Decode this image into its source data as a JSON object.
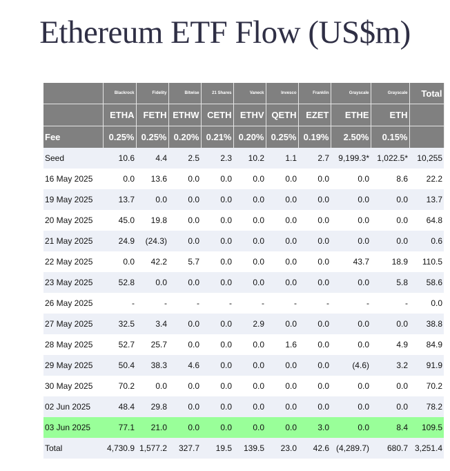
{
  "title": "Ethereum ETF Flow (US$m)",
  "columns": [
    {
      "issuer": "Blackrock",
      "ticker": "ETHA",
      "fee": "0.25%"
    },
    {
      "issuer": "Fidelity",
      "ticker": "FETH",
      "fee": "0.25%"
    },
    {
      "issuer": "Bitwise",
      "ticker": "ETHW",
      "fee": "0.20%"
    },
    {
      "issuer": "21 Shares",
      "ticker": "CETH",
      "fee": "0.21%"
    },
    {
      "issuer": "Vaneck",
      "ticker": "ETHV",
      "fee": "0.20%"
    },
    {
      "issuer": "Invesco",
      "ticker": "QETH",
      "fee": "0.25%"
    },
    {
      "issuer": "Franklin",
      "ticker": "EZET",
      "fee": "0.19%"
    },
    {
      "issuer": "Grayscale",
      "ticker": "ETHE",
      "fee": "2.50%"
    },
    {
      "issuer": "Grayscale",
      "ticker": "ETH",
      "fee": "0.15%"
    }
  ],
  "total_header": "Total",
  "fee_label": "Fee",
  "rows": [
    {
      "label": "Seed",
      "values": [
        "10.6",
        "4.4",
        "2.5",
        "2.3",
        "10.2",
        "1.1",
        "2.7",
        "9,199.3*",
        "1,022.5*",
        "10,255"
      ],
      "style": "alt"
    },
    {
      "label": "16 May 2025",
      "values": [
        "0.0",
        "13.6",
        "0.0",
        "0.0",
        "0.0",
        "0.0",
        "0.0",
        "0.0",
        "8.6",
        "22.2"
      ],
      "style": ""
    },
    {
      "label": "19 May 2025",
      "values": [
        "13.7",
        "0.0",
        "0.0",
        "0.0",
        "0.0",
        "0.0",
        "0.0",
        "0.0",
        "0.0",
        "13.7"
      ],
      "style": "alt"
    },
    {
      "label": "20 May 2025",
      "values": [
        "45.0",
        "19.8",
        "0.0",
        "0.0",
        "0.0",
        "0.0",
        "0.0",
        "0.0",
        "0.0",
        "64.8"
      ],
      "style": ""
    },
    {
      "label": "21 May 2025",
      "values": [
        "24.9",
        "(24.3)",
        "0.0",
        "0.0",
        "0.0",
        "0.0",
        "0.0",
        "0.0",
        "0.0",
        "0.6"
      ],
      "style": "alt"
    },
    {
      "label": "22 May 2025",
      "values": [
        "0.0",
        "42.2",
        "5.7",
        "0.0",
        "0.0",
        "0.0",
        "0.0",
        "43.7",
        "18.9",
        "110.5"
      ],
      "style": ""
    },
    {
      "label": "23 May 2025",
      "values": [
        "52.8",
        "0.0",
        "0.0",
        "0.0",
        "0.0",
        "0.0",
        "0.0",
        "0.0",
        "5.8",
        "58.6"
      ],
      "style": "alt"
    },
    {
      "label": "26 May 2025",
      "values": [
        "-",
        "-",
        "-",
        "-",
        "-",
        "-",
        "-",
        "-",
        "-",
        "0.0"
      ],
      "style": ""
    },
    {
      "label": "27 May 2025",
      "values": [
        "32.5",
        "3.4",
        "0.0",
        "0.0",
        "2.9",
        "0.0",
        "0.0",
        "0.0",
        "0.0",
        "38.8"
      ],
      "style": "alt"
    },
    {
      "label": "28 May 2025",
      "values": [
        "52.7",
        "25.7",
        "0.0",
        "0.0",
        "0.0",
        "1.6",
        "0.0",
        "0.0",
        "4.9",
        "84.9"
      ],
      "style": ""
    },
    {
      "label": "29 May 2025",
      "values": [
        "50.4",
        "38.3",
        "4.6",
        "0.0",
        "0.0",
        "0.0",
        "0.0",
        "(4.6)",
        "3.2",
        "91.9"
      ],
      "style": "alt"
    },
    {
      "label": "30 May 2025",
      "values": [
        "70.2",
        "0.0",
        "0.0",
        "0.0",
        "0.0",
        "0.0",
        "0.0",
        "0.0",
        "0.0",
        "70.2"
      ],
      "style": ""
    },
    {
      "label": "02 Jun 2025",
      "values": [
        "48.4",
        "29.8",
        "0.0",
        "0.0",
        "0.0",
        "0.0",
        "0.0",
        "0.0",
        "0.0",
        "78.2"
      ],
      "style": "alt"
    },
    {
      "label": "03 Jun 2025",
      "values": [
        "77.1",
        "21.0",
        "0.0",
        "0.0",
        "0.0",
        "0.0",
        "3.0",
        "0.0",
        "8.4",
        "109.5"
      ],
      "style": "highlight"
    },
    {
      "label": "Total",
      "values": [
        "4,730.9",
        "1,577.2",
        "327.7",
        "19.5",
        "139.5",
        "23.0",
        "42.6",
        "(4,289.7)",
        "680.7",
        "3,251.4"
      ],
      "style": "alt"
    }
  ],
  "colors": {
    "header_bg": "#808080",
    "alt_row": "#edf0f7",
    "highlight_row": "#99ff99",
    "negative": "#e02020"
  }
}
